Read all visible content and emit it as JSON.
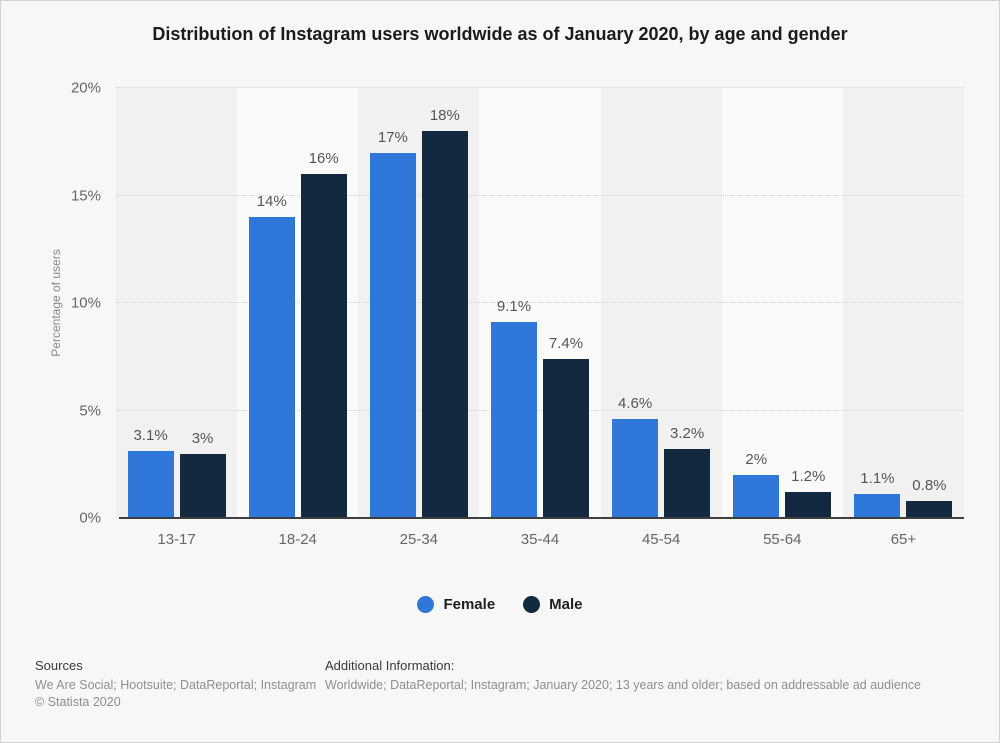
{
  "title": "Distribution of Instagram users worldwide as of January 2020, by age and gender",
  "chart_data": {
    "type": "bar",
    "categories": [
      "13-17",
      "18-24",
      "25-34",
      "35-44",
      "45-54",
      "55-64",
      "65+"
    ],
    "series": [
      {
        "name": "Female",
        "color": "#2f78d9",
        "values": [
          3.1,
          14,
          17,
          9.1,
          4.6,
          2,
          1.1
        ],
        "labels": [
          "3.1%",
          "14%",
          "17%",
          "9.1%",
          "4.6%",
          "2%",
          "1.1%"
        ]
      },
      {
        "name": "Male",
        "color": "#13293f",
        "values": [
          3,
          16,
          18,
          7.4,
          3.2,
          1.2,
          0.8
        ],
        "labels": [
          "3%",
          "16%",
          "18%",
          "7.4%",
          "3.2%",
          "1.2%",
          "0.8%"
        ]
      }
    ],
    "title": "Distribution of Instagram users worldwide as of January 2020, by age and gender",
    "xlabel": "",
    "ylabel": "Percentage of users",
    "ylim": [
      0,
      20
    ],
    "yticks": [
      {
        "value": 0,
        "label": "0%"
      },
      {
        "value": 5,
        "label": "5%"
      },
      {
        "value": 10,
        "label": "10%"
      },
      {
        "value": 15,
        "label": "15%"
      },
      {
        "value": 20,
        "label": "20%"
      }
    ],
    "grid": "horizontal dotted",
    "legend_position": "bottom",
    "plot_band_colors": [
      "#f1f1f1",
      "#fafafa"
    ]
  },
  "footer": {
    "sources_heading": "Sources",
    "sources_text": "We Are Social; Hootsuite; DataReportal; Instagram",
    "copyright": "© Statista 2020",
    "additional_heading": "Additional Information:",
    "additional_text": "Worldwide; DataReportal; Instagram; January 2020; 13 years and older; based on addressable ad audience"
  }
}
